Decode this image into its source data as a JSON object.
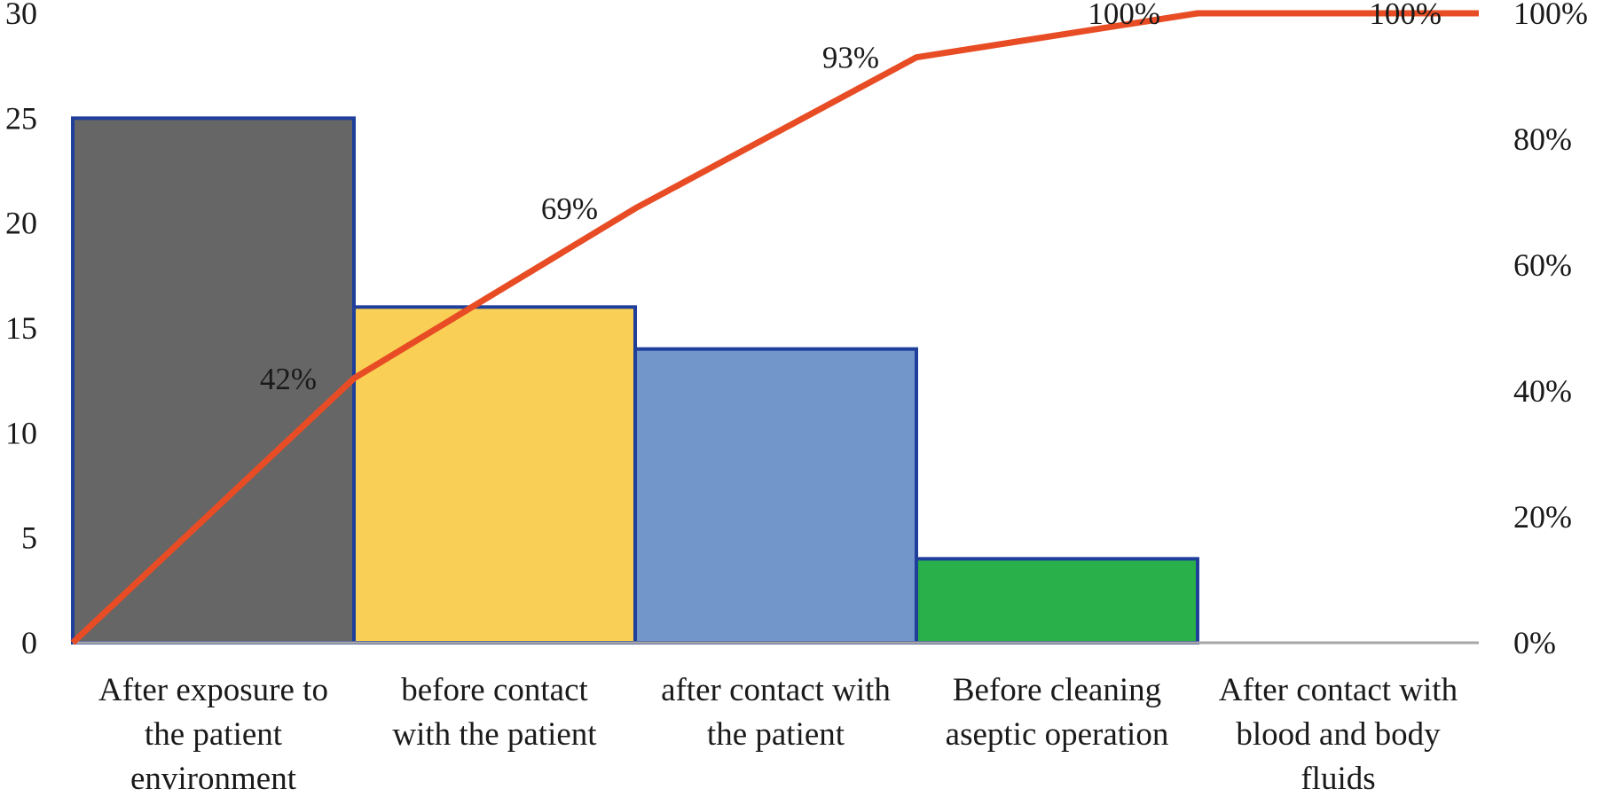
{
  "chart_data": {
    "type": "bar",
    "title": "",
    "xlabel": "",
    "ylabel": "",
    "categories": [
      [
        "After exposure to",
        "the patient",
        "environment"
      ],
      [
        "before contact",
        "with the patient"
      ],
      [
        "after contact with",
        "the patient"
      ],
      [
        "Before cleaning",
        "aseptic operation"
      ],
      [
        "After contact with",
        "blood and body",
        "fluids"
      ]
    ],
    "values": [
      25,
      16,
      14,
      4,
      0
    ],
    "bar_colors": [
      "#666666",
      "#F9CF55",
      "#7295CA",
      "#29B04B",
      "#FFFFFF"
    ],
    "bar_edge_color": "#1F3F9A",
    "line": {
      "type": "line",
      "color": "#E84C25",
      "x_positions": [
        "start",
        "boundary-1",
        "boundary-2",
        "boundary-3",
        "boundary-4",
        "end"
      ],
      "values": [
        0,
        42,
        69,
        93,
        100,
        100
      ],
      "labels": [
        "42%",
        "69%",
        "93%",
        "100%",
        "100%"
      ],
      "axis": "right"
    },
    "y_left": {
      "ylim": [
        0,
        30
      ],
      "ticks": [
        "0",
        "5",
        "10",
        "15",
        "20",
        "25",
        "30"
      ]
    },
    "y_right": {
      "ylim": [
        0,
        100
      ],
      "ticks": [
        "0%",
        "20%",
        "40%",
        "60%",
        "80%",
        "100%"
      ]
    },
    "grid": false,
    "legend": "none",
    "axis_color": "#A6A6A6"
  }
}
